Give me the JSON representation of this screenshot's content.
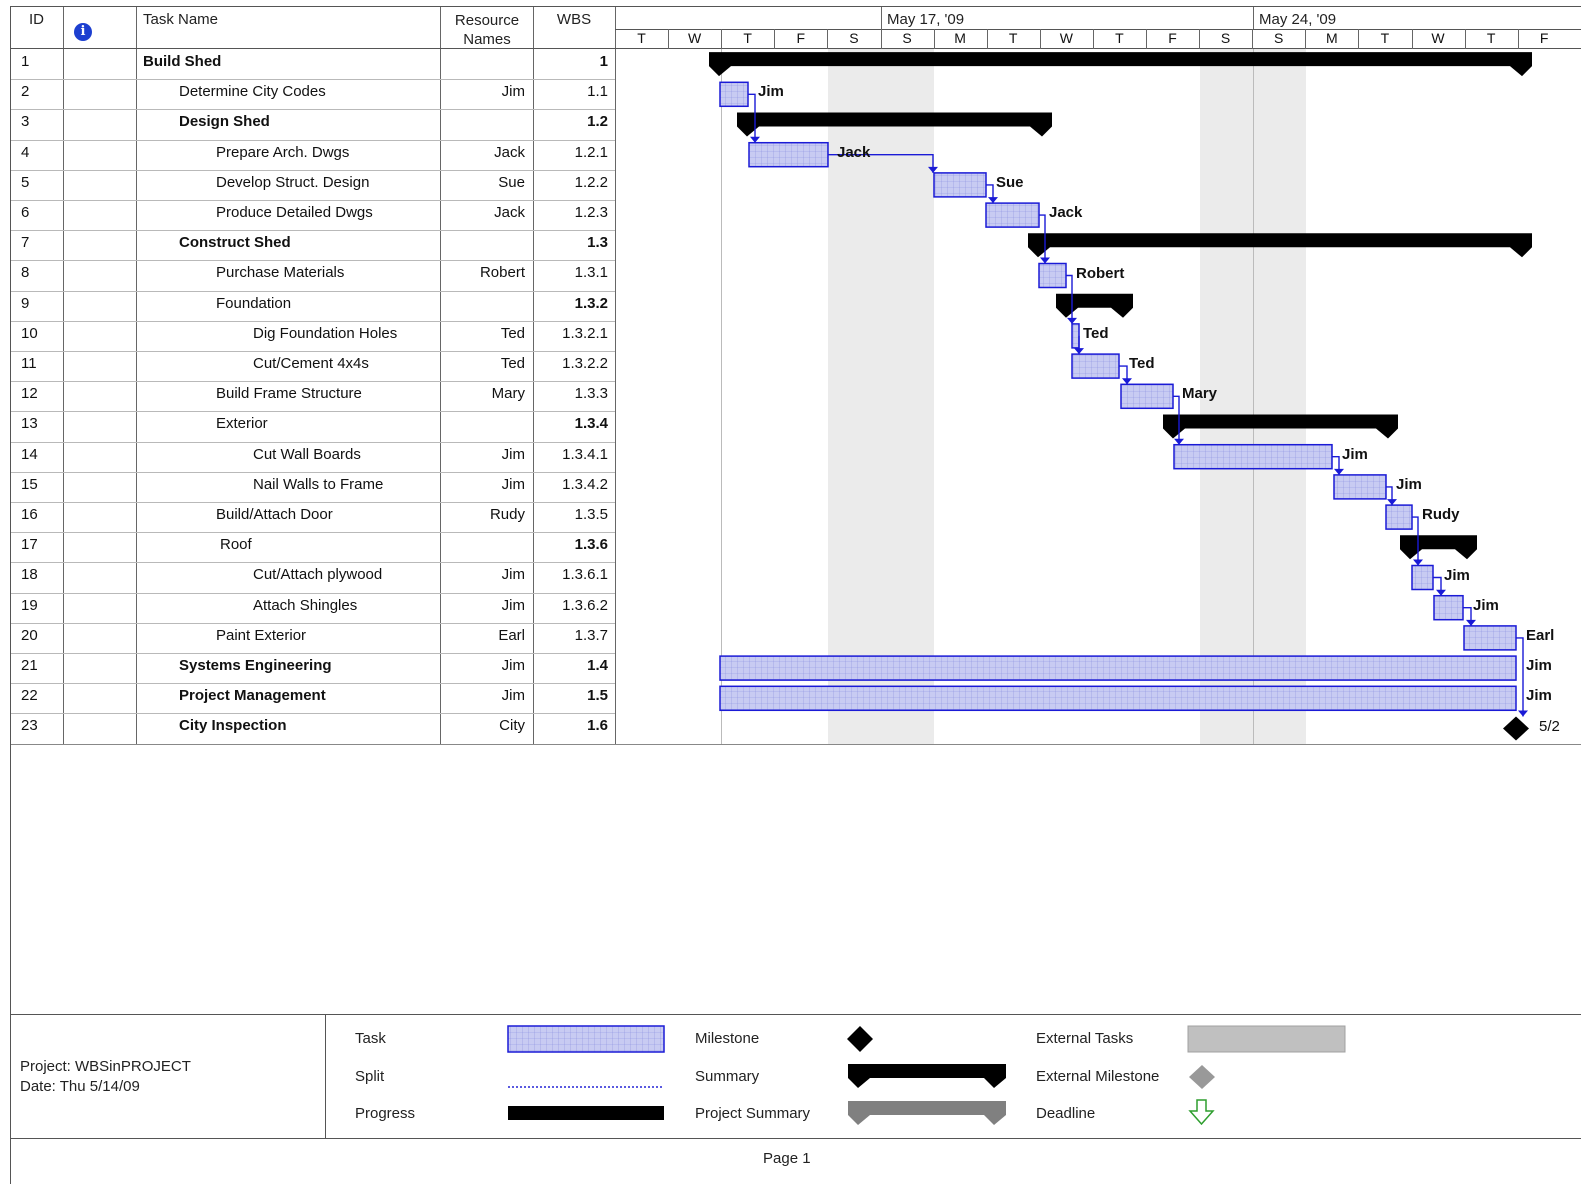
{
  "columns": {
    "id": "ID",
    "info_icon": "info-icon",
    "task_name": "Task Name",
    "resource_line1": "Resource",
    "resource_line2": "Names",
    "wbs": "WBS"
  },
  "timescale": {
    "week1": "May 17, '09",
    "week2": "May 24, '09",
    "days": [
      "T",
      "W",
      "T",
      "F",
      "S",
      "S",
      "M",
      "T",
      "W",
      "T",
      "F",
      "S",
      "S",
      "M",
      "T",
      "W",
      "T",
      "F"
    ]
  },
  "tasks": [
    {
      "id": "1",
      "name": "Build Shed",
      "resource": "",
      "wbs": "1",
      "bold": true,
      "indent": 0,
      "bar_label": ""
    },
    {
      "id": "2",
      "name": "Determine City Codes",
      "resource": "Jim",
      "wbs": "1.1",
      "bold": false,
      "indent": 1,
      "bar_label": "Jim"
    },
    {
      "id": "3",
      "name": "Design Shed",
      "resource": "",
      "wbs": "1.2",
      "bold": true,
      "indent": 1,
      "bar_label": ""
    },
    {
      "id": "4",
      "name": "Prepare Arch. Dwgs",
      "resource": "Jack",
      "wbs": "1.2.1",
      "bold": false,
      "indent": 2,
      "bar_label": "Jack"
    },
    {
      "id": "5",
      "name": "Develop Struct. Design",
      "resource": "Sue",
      "wbs": "1.2.2",
      "bold": false,
      "indent": 2,
      "bar_label": "Sue"
    },
    {
      "id": "6",
      "name": "Produce Detailed Dwgs",
      "resource": "Jack",
      "wbs": "1.2.3",
      "bold": false,
      "indent": 2,
      "bar_label": "Jack"
    },
    {
      "id": "7",
      "name": "Construct Shed",
      "resource": "",
      "wbs": "1.3",
      "bold": true,
      "indent": 1,
      "bar_label": ""
    },
    {
      "id": "8",
      "name": "Purchase Materials",
      "resource": "Robert",
      "wbs": "1.3.1",
      "bold": false,
      "indent": 2,
      "bar_label": "Robert"
    },
    {
      "id": "9",
      "name": "Foundation",
      "resource": "",
      "wbs": "1.3.2",
      "bold": false,
      "wbs_bold": true,
      "indent": 2,
      "bar_label": ""
    },
    {
      "id": "10",
      "name": "Dig Foundation Holes",
      "resource": "Ted",
      "wbs": "1.3.2.1",
      "bold": false,
      "indent": 3,
      "bar_label": "Ted"
    },
    {
      "id": "11",
      "name": "Cut/Cement 4x4s",
      "resource": "Ted",
      "wbs": "1.3.2.2",
      "bold": false,
      "indent": 3,
      "bar_label": "Ted"
    },
    {
      "id": "12",
      "name": "Build Frame Structure",
      "resource": "Mary",
      "wbs": "1.3.3",
      "bold": false,
      "indent": 2,
      "bar_label": "Mary"
    },
    {
      "id": "13",
      "name": "Exterior",
      "resource": "",
      "wbs": "1.3.4",
      "bold": false,
      "wbs_bold": true,
      "indent": 2,
      "bar_label": ""
    },
    {
      "id": "14",
      "name": "Cut Wall Boards",
      "resource": "Jim",
      "wbs": "1.3.4.1",
      "bold": false,
      "indent": 3,
      "bar_label": "Jim"
    },
    {
      "id": "15",
      "name": "Nail Walls to Frame",
      "resource": "Jim",
      "wbs": "1.3.4.2",
      "bold": false,
      "indent": 3,
      "bar_label": "Jim"
    },
    {
      "id": "16",
      "name": "Build/Attach Door",
      "resource": "Rudy",
      "wbs": "1.3.5",
      "bold": false,
      "indent": 2,
      "bar_label": "Rudy"
    },
    {
      "id": "17",
      "name": "Roof",
      "resource": "",
      "wbs": "1.3.6",
      "bold": false,
      "wbs_bold": true,
      "indent": 2,
      "bar_label": ""
    },
    {
      "id": "18",
      "name": "Cut/Attach plywood",
      "resource": "Jim",
      "wbs": "1.3.6.1",
      "bold": false,
      "indent": 3,
      "bar_label": "Jim"
    },
    {
      "id": "19",
      "name": "Attach Shingles",
      "resource": "Jim",
      "wbs": "1.3.6.2",
      "bold": false,
      "indent": 3,
      "bar_label": "Jim"
    },
    {
      "id": "20",
      "name": "Paint Exterior",
      "resource": "Earl",
      "wbs": "1.3.7",
      "bold": false,
      "indent": 2,
      "bar_label": "Earl"
    },
    {
      "id": "21",
      "name": "Systems Engineering",
      "resource": "Jim",
      "wbs": "1.4",
      "bold": true,
      "indent": 1,
      "bar_label": "Jim"
    },
    {
      "id": "22",
      "name": "Project Management",
      "resource": "Jim",
      "wbs": "1.5",
      "bold": true,
      "indent": 1,
      "bar_label": "Jim"
    },
    {
      "id": "23",
      "name": "City Inspection",
      "resource": "City",
      "wbs": "1.6",
      "bold": true,
      "indent": 1,
      "bar_label": "5/2"
    }
  ],
  "footer": {
    "project": "Project: WBSinPROJECT",
    "date": "Date: Thu 5/14/09",
    "legend": {
      "task": "Task",
      "split": "Split",
      "progress": "Progress",
      "milestone": "Milestone",
      "summary": "Summary",
      "project_summary": "Project Summary",
      "external_tasks": "External Tasks",
      "external_milestone": "External Milestone",
      "deadline": "Deadline"
    },
    "page": "Page 1"
  },
  "colors": {
    "task_fill": "#c8cbf2",
    "task_border": "#1a1ad6",
    "summary": "#000000",
    "link": "#1a1ad6",
    "weekend": "#ebebeb",
    "external": "#c0c0c0",
    "deadline": "#2e9e2e"
  }
}
